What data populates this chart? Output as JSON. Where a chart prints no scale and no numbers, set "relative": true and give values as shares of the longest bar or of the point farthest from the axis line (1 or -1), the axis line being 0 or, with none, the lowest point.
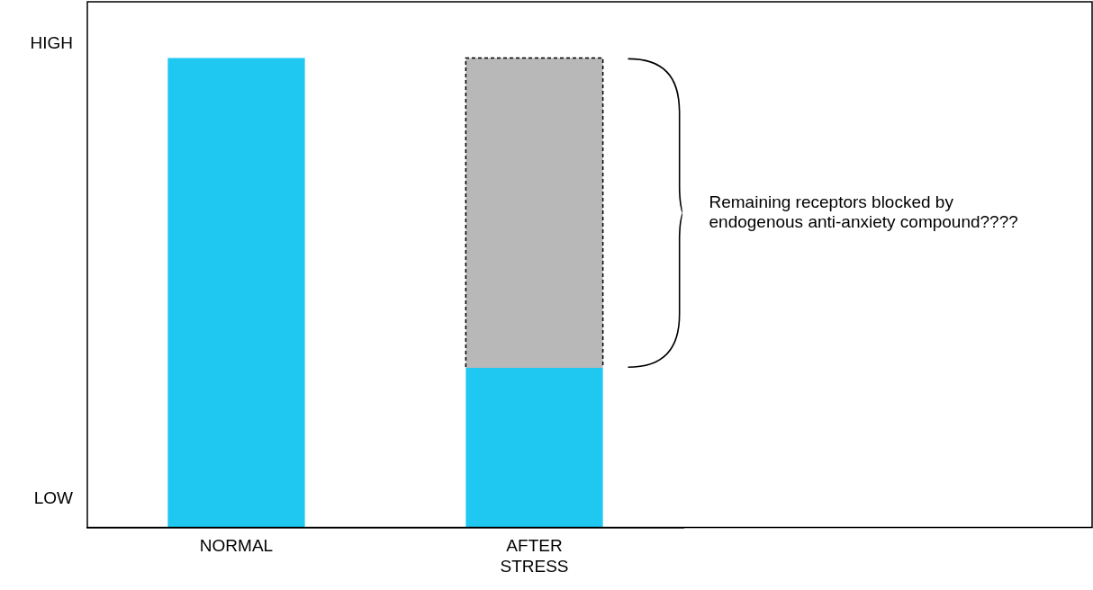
{
  "chart_data": {
    "type": "bar",
    "categories": [
      "NORMAL",
      "AFTER STRESS"
    ],
    "stacked": true,
    "relative": true,
    "series": [
      {
        "color": "#1ec8f0",
        "values": [
          1,
          0.34
        ]
      },
      {
        "color": "#b8b8b8",
        "values": [
          null,
          0.66
        ],
        "line_style": "dashed"
      }
    ],
    "grid": false,
    "legend": false,
    "annotations": [
      "HIGH",
      "LOW",
      "Remaining receptors blocked by endogenous anti-anxiety compound????"
    ]
  }
}
